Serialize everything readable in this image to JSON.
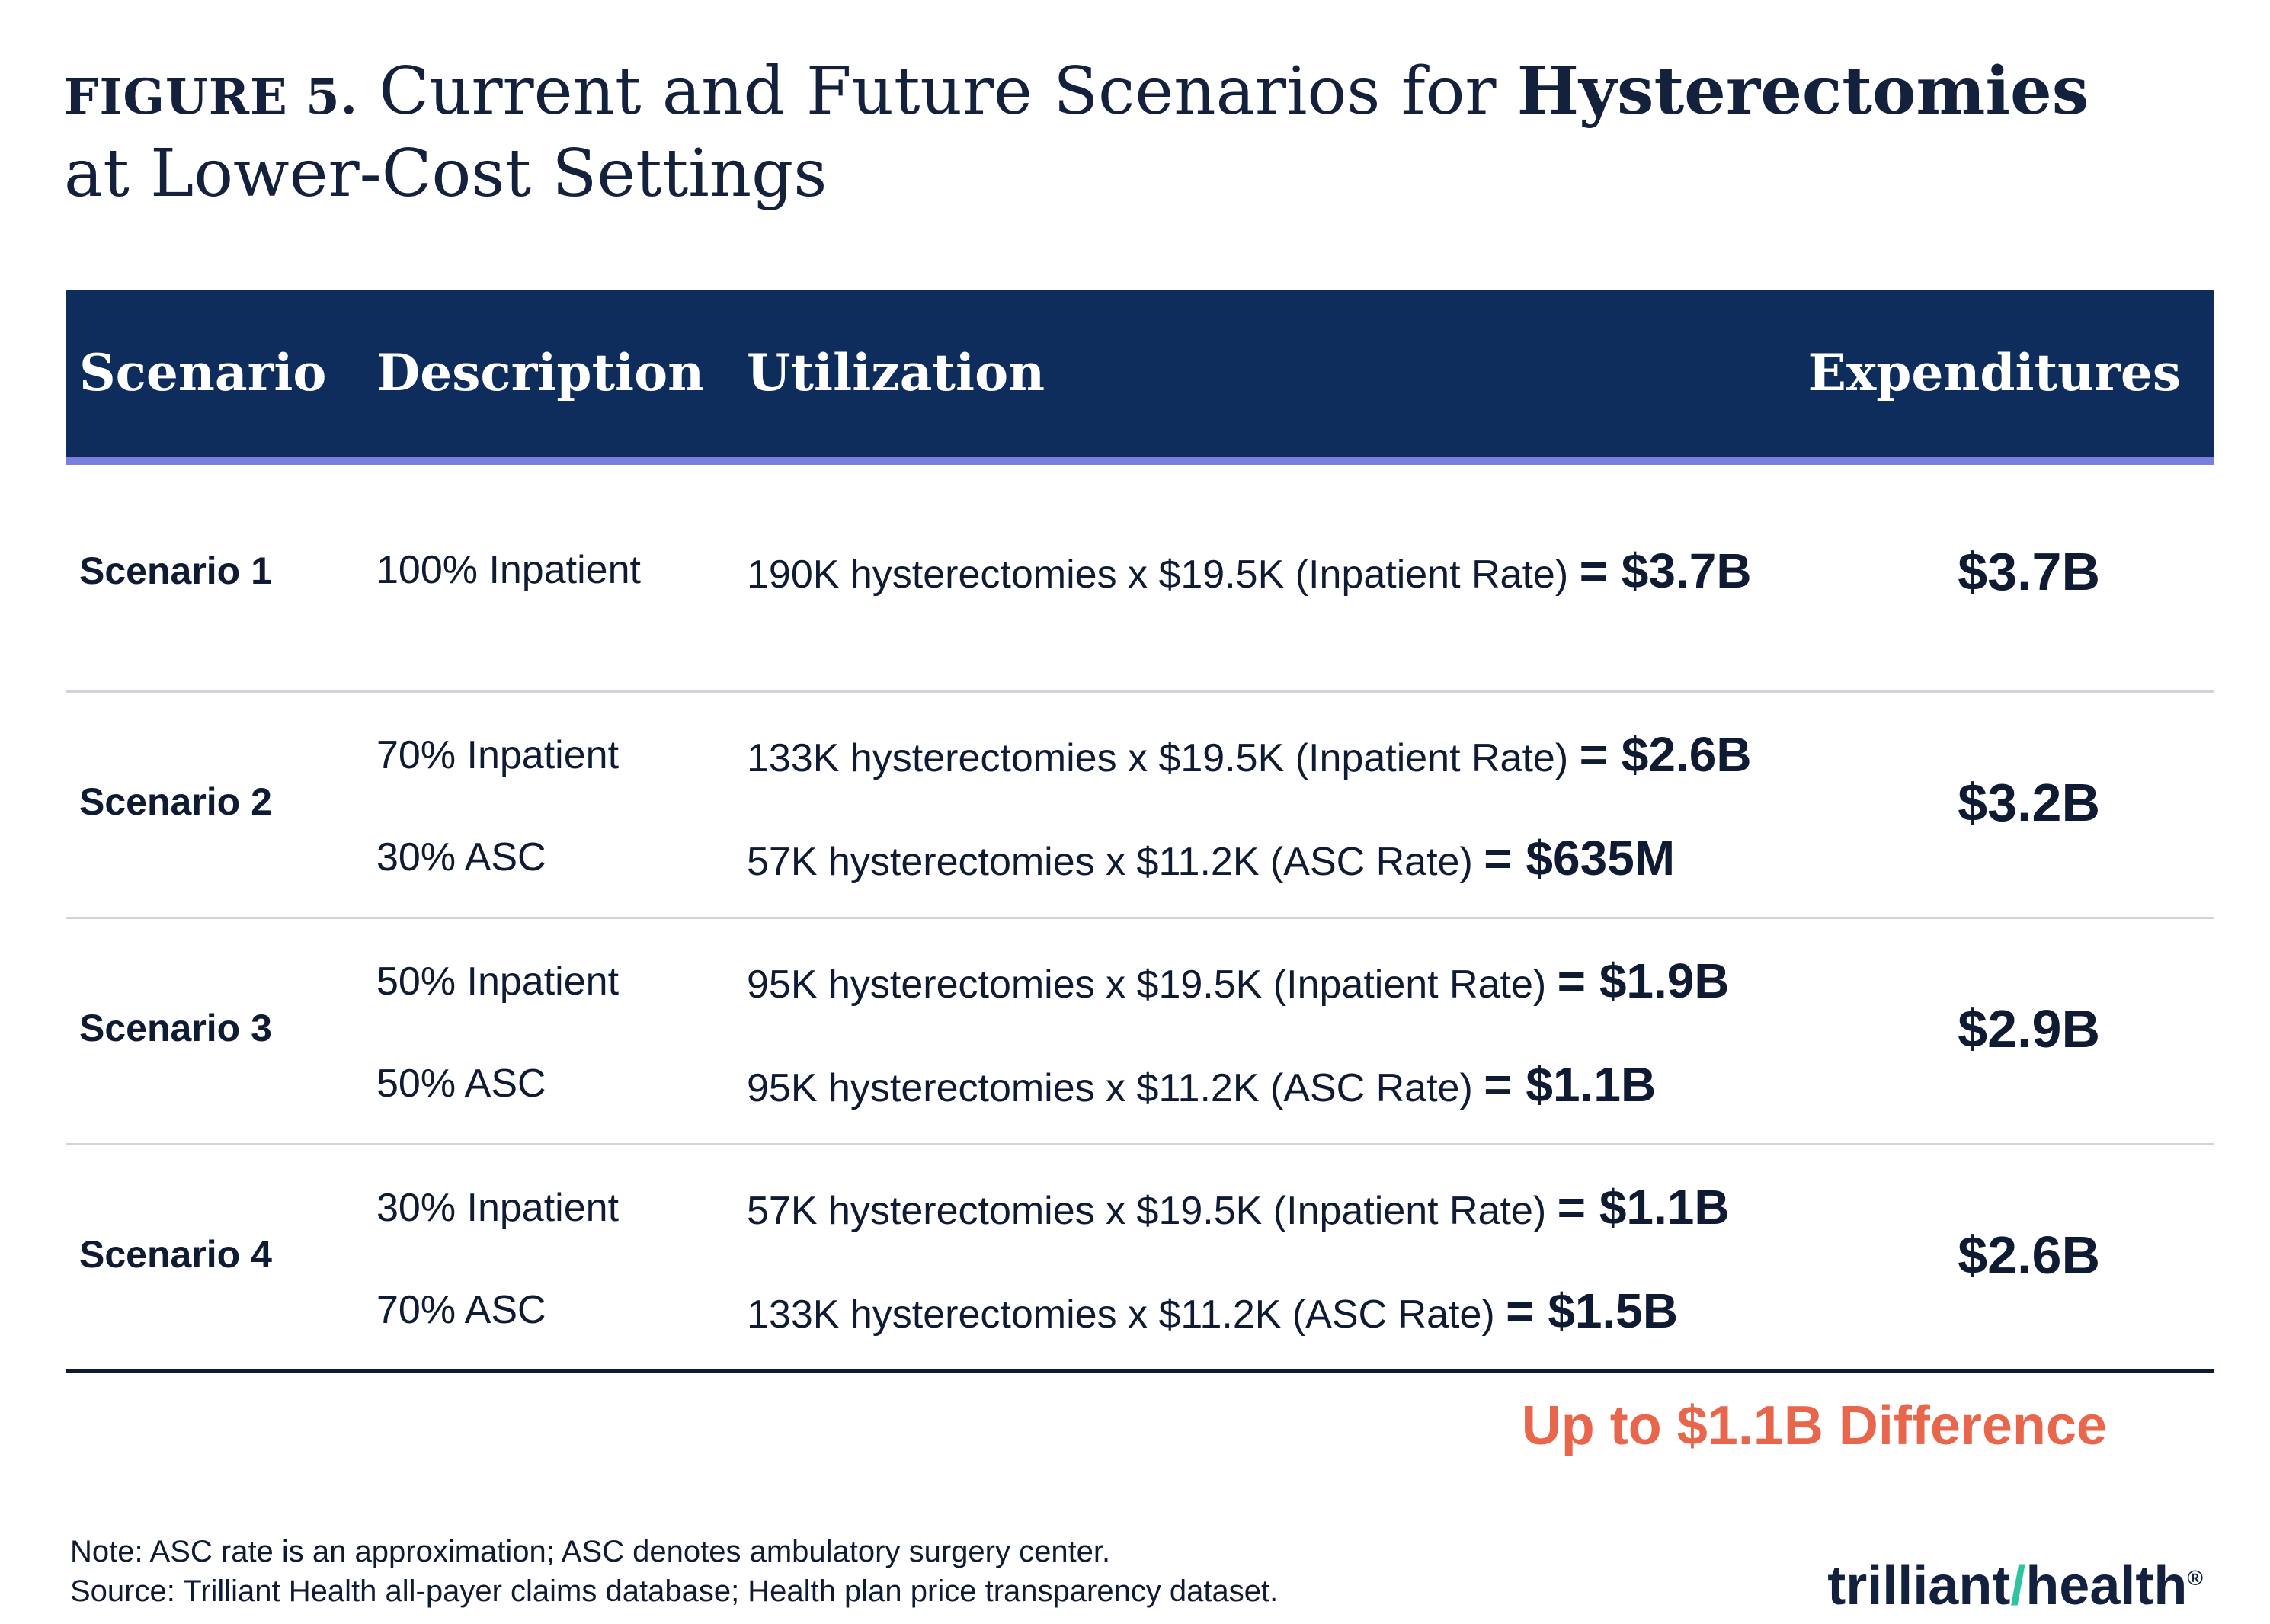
{
  "title": {
    "figure_label": "FIGURE 5.",
    "text_before": "Current and Future Scenarios for",
    "text_bold": "Hysterectomies",
    "text_after": "at Lower-Cost Settings"
  },
  "table": {
    "headers": [
      "Scenario",
      "Description",
      "Utilization",
      "Expenditures"
    ],
    "rows": [
      {
        "scenario": "Scenario 1",
        "lines": [
          {
            "description": "100% Inpatient",
            "utilization": "190K hysterectomies x $19.5K (Inpatient Rate)",
            "result": "= $3.7B"
          }
        ],
        "expenditure": "$3.7B"
      },
      {
        "scenario": "Scenario 2",
        "lines": [
          {
            "description": "70% Inpatient",
            "utilization": "133K hysterectomies x $19.5K (Inpatient Rate)",
            "result": "= $2.6B"
          },
          {
            "description": "30% ASC",
            "utilization": "57K hysterectomies x $11.2K (ASC Rate)",
            "result": "= $635M"
          }
        ],
        "expenditure": "$3.2B"
      },
      {
        "scenario": "Scenario 3",
        "lines": [
          {
            "description": "50% Inpatient",
            "utilization": "95K hysterectomies x $19.5K (Inpatient Rate)",
            "result": "= $1.9B"
          },
          {
            "description": "50% ASC",
            "utilization": "95K hysterectomies x $11.2K (ASC Rate)",
            "result": "= $1.1B"
          }
        ],
        "expenditure": "$2.9B"
      },
      {
        "scenario": "Scenario 4",
        "lines": [
          {
            "description": "30% Inpatient",
            "utilization": "57K hysterectomies x $19.5K (Inpatient Rate)",
            "result": "= $1.1B"
          },
          {
            "description": "70% ASC",
            "utilization": "133K hysterectomies x $11.2K (ASC Rate)",
            "result": "= $1.5B"
          }
        ],
        "expenditure": "$2.6B"
      }
    ]
  },
  "difference": "Up to $1.1B Difference",
  "notes": {
    "note": "Note: ASC rate is an approximation; ASC denotes ambulatory surgery center.",
    "source": "Source: Trilliant Health all-payer claims database; Health plan price transparency dataset."
  },
  "logo": {
    "part1": "trilliant",
    "part2": "health",
    "mark": "®"
  },
  "colors": {
    "header_bg": "#0f2d5c",
    "header_accent": "#7b7fe0",
    "difference": "#e8674c",
    "text": "#0f1b33"
  },
  "chart_data": {
    "type": "table",
    "title": "FIGURE 5. Current and Future Scenarios for Hysterectomies at Lower-Cost Settings",
    "columns": [
      "Scenario",
      "Description",
      "Utilization",
      "Expenditures"
    ],
    "rows": [
      [
        "Scenario 1",
        "100% Inpatient",
        "190K hysterectomies x $19.5K (Inpatient Rate) = $3.7B",
        "$3.7B"
      ],
      [
        "Scenario 2",
        "70% Inpatient; 30% ASC",
        "133K hysterectomies x $19.5K (Inpatient Rate) = $2.6B; 57K hysterectomies x $11.2K (ASC Rate) = $635M",
        "$3.2B"
      ],
      [
        "Scenario 3",
        "50% Inpatient; 50% ASC",
        "95K hysterectomies x $19.5K (Inpatient Rate) = $1.9B; 95K hysterectomies x $11.2K (ASC Rate) = $1.1B",
        "$2.9B"
      ],
      [
        "Scenario 4",
        "30% Inpatient; 70% ASC",
        "57K hysterectomies x $19.5K (Inpatient Rate) = $1.1B; 133K hysterectomies x $11.2K (ASC Rate) = $1.5B",
        "$2.6B"
      ]
    ]
  }
}
